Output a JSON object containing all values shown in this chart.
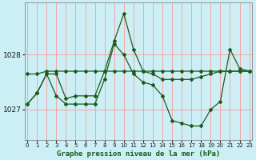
{
  "title": "Graphe pression niveau de la mer (hPa)",
  "background_color": "#cceef5",
  "grid_color": "#ff9999",
  "line_color": "#1a5c1a",
  "ylim": [
    1026.45,
    1028.95
  ],
  "yticks": [
    1027,
    1028
  ],
  "xlim": [
    -0.3,
    23.3
  ],
  "xticks": [
    0,
    1,
    2,
    3,
    4,
    5,
    6,
    7,
    8,
    9,
    10,
    11,
    12,
    13,
    14,
    15,
    16,
    17,
    18,
    19,
    20,
    21,
    22,
    23
  ],
  "series": [
    [
      1027.65,
      1027.65,
      1027.7,
      1027.7,
      1027.7,
      1027.7,
      1027.7,
      1027.7,
      1027.7,
      1027.7,
      1027.7,
      1027.7,
      1027.7,
      1027.7,
      1027.7,
      1027.7,
      1027.7,
      1027.7,
      1027.7,
      1027.7,
      1027.7,
      1027.7,
      1027.7,
      1027.7
    ],
    [
      1027.1,
      1027.3,
      1027.65,
      1027.65,
      1027.2,
      1027.25,
      1027.25,
      1027.25,
      1027.7,
      1028.25,
      1028.75,
      1028.1,
      1027.7,
      1027.65,
      1027.55,
      1027.55,
      1027.55,
      1027.55,
      1027.6,
      1027.65,
      1027.7,
      1027.7,
      1027.7,
      1027.7
    ],
    [
      1027.1,
      1027.3,
      1027.65,
      1027.25,
      1027.1,
      1027.1,
      1027.1,
      1027.1,
      1027.55,
      1028.2,
      1028.0,
      1027.65,
      1027.5,
      1027.45,
      1027.25,
      1026.8,
      1026.75,
      1026.7,
      1026.7,
      1027.0,
      1027.15,
      1028.1,
      1027.75,
      1027.7
    ]
  ]
}
